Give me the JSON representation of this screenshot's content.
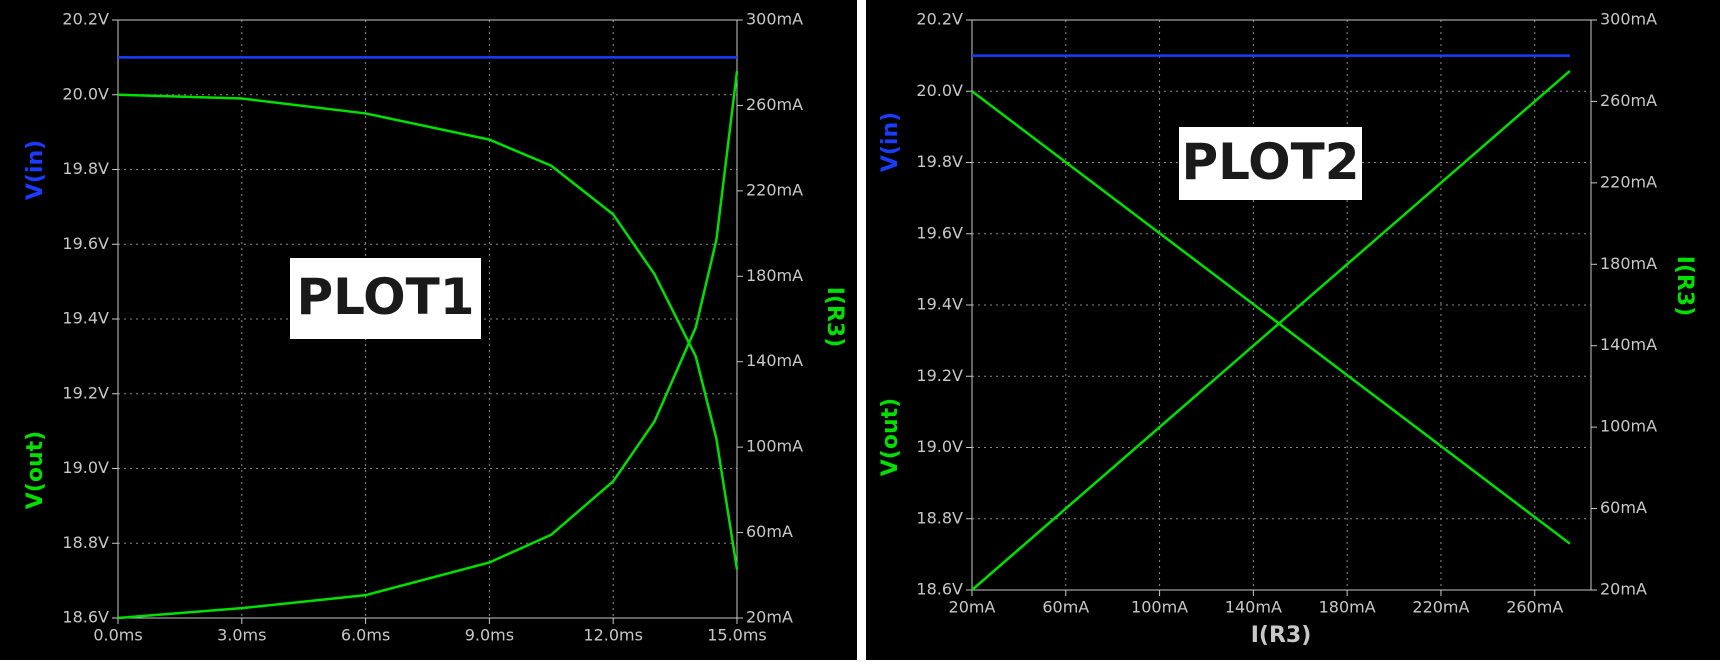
{
  "chart_data": [
    {
      "type": "line",
      "annotation": "PLOT1",
      "x": [
        0,
        3,
        6,
        9,
        10.5,
        12,
        13,
        14,
        14.5,
        15
      ],
      "xlim": [
        0,
        15
      ],
      "xticks": [
        {
          "value": 0,
          "label": "0.0ms"
        },
        {
          "value": 3,
          "label": "3.0ms"
        },
        {
          "value": 6,
          "label": "6.0ms"
        },
        {
          "value": 9,
          "label": "9.0ms"
        },
        {
          "value": 12,
          "label": "12.0ms"
        },
        {
          "value": 15,
          "label": "15.0ms"
        }
      ],
      "ylim": [
        18.6,
        20.2
      ],
      "yticks": [
        {
          "value": 18.6,
          "label": "18.6V"
        },
        {
          "value": 18.8,
          "label": "18.8V"
        },
        {
          "value": 19.0,
          "label": "19.0V"
        },
        {
          "value": 19.2,
          "label": "19.2V"
        },
        {
          "value": 19.4,
          "label": "19.4V"
        },
        {
          "value": 19.6,
          "label": "19.6V"
        },
        {
          "value": 19.8,
          "label": "19.8V"
        },
        {
          "value": 20.0,
          "label": "20.0V"
        },
        {
          "value": 20.2,
          "label": "20.2V"
        }
      ],
      "y2lim": [
        20,
        300
      ],
      "y2ticks": [
        {
          "value": 20,
          "label": "20mA"
        },
        {
          "value": 60,
          "label": "60mA"
        },
        {
          "value": 100,
          "label": "100mA"
        },
        {
          "value": 140,
          "label": "140mA"
        },
        {
          "value": 180,
          "label": "180mA"
        },
        {
          "value": 220,
          "label": "220mA"
        },
        {
          "value": 260,
          "label": "260mA"
        },
        {
          "value": 300,
          "label": "300mA"
        }
      ],
      "grid": true,
      "series": [
        {
          "name": "V(in)",
          "color": "#1a3cff",
          "values": [
            20.1,
            20.1,
            20.1,
            20.1,
            20.1,
            20.1,
            20.1,
            20.1,
            20.1,
            20.1
          ]
        },
        {
          "name": "V(out)",
          "color": "#00e000",
          "values": [
            20.0,
            19.99,
            19.95,
            19.88,
            19.81,
            19.68,
            19.52,
            19.3,
            19.08,
            18.73
          ]
        },
        {
          "name": "I(R3)",
          "color": "#00e000",
          "axis": "y2",
          "values": [
            20,
            24.6,
            30.7,
            46,
            59,
            84,
            112,
            156,
            197,
            276
          ]
        }
      ]
    },
    {
      "type": "line",
      "annotation": "PLOT2",
      "xlabel": "I(R3)",
      "x": [
        20,
        275
      ],
      "xlim": [
        20,
        284
      ],
      "xticks": [
        {
          "value": 20,
          "label": "20mA"
        },
        {
          "value": 60,
          "label": "60mA"
        },
        {
          "value": 100,
          "label": "100mA"
        },
        {
          "value": 140,
          "label": "140mA"
        },
        {
          "value": 180,
          "label": "180mA"
        },
        {
          "value": 220,
          "label": "220mA"
        },
        {
          "value": 260,
          "label": "260mA"
        }
      ],
      "ylim": [
        18.6,
        20.2
      ],
      "yticks": [
        {
          "value": 18.6,
          "label": "18.6V"
        },
        {
          "value": 18.8,
          "label": "18.8V"
        },
        {
          "value": 19.0,
          "label": "19.0V"
        },
        {
          "value": 19.2,
          "label": "19.2V"
        },
        {
          "value": 19.4,
          "label": "19.4V"
        },
        {
          "value": 19.6,
          "label": "19.6V"
        },
        {
          "value": 19.8,
          "label": "19.8V"
        },
        {
          "value": 20.0,
          "label": "20.0V"
        },
        {
          "value": 20.2,
          "label": "20.2V"
        }
      ],
      "y2lim": [
        20,
        300
      ],
      "y2ticks": [
        {
          "value": 20,
          "label": "20mA"
        },
        {
          "value": 60,
          "label": "60mA"
        },
        {
          "value": 100,
          "label": "100mA"
        },
        {
          "value": 140,
          "label": "140mA"
        },
        {
          "value": 180,
          "label": "180mA"
        },
        {
          "value": 220,
          "label": "220mA"
        },
        {
          "value": 260,
          "label": "260mA"
        },
        {
          "value": 300,
          "label": "300mA"
        }
      ],
      "grid": true,
      "series": [
        {
          "name": "V(in)",
          "color": "#1a3cff",
          "values": [
            20.1,
            20.1
          ]
        },
        {
          "name": "V(out)",
          "color": "#00e000",
          "values": [
            20.0,
            18.73
          ]
        },
        {
          "name": "I(R3)",
          "color": "#00e000",
          "axis": "y2",
          "values": [
            20,
            275
          ]
        }
      ]
    }
  ]
}
